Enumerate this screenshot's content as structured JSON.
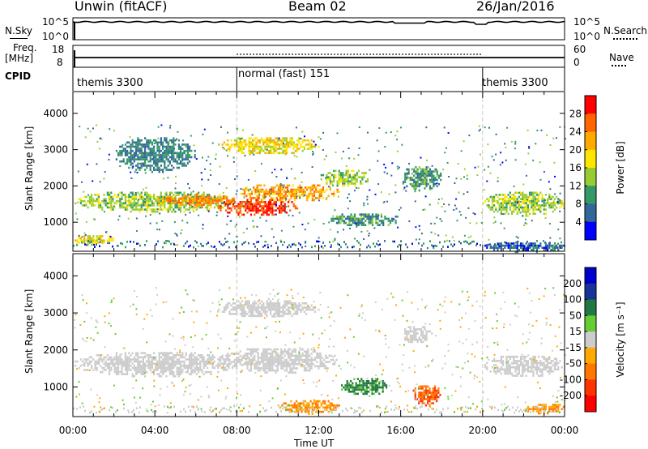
{
  "header": {
    "station": "Unwin (fitACF)",
    "beam": "Beam 02",
    "date": "26/Jan/2016"
  },
  "top_panels": {
    "nsky_label": "N.Sky",
    "nsky_ticks": [
      "10^5",
      "10^0"
    ],
    "nsearch_label": "N.Search",
    "nsearch_ticks": [
      "10^5",
      "10^0"
    ],
    "freq_label_line1": "Freq.",
    "freq_label_line2": "[MHz]",
    "freq_ticks": [
      "18",
      "8"
    ],
    "nave_label": "Nave",
    "nave_ticks": [
      "60",
      "0"
    ],
    "cpid_label": "CPID",
    "cpid_segments": [
      {
        "label": "themis 3300",
        "start": 0.0,
        "end": 8.0
      },
      {
        "label": "normal (fast) 151",
        "start": 8.0,
        "end": 20.0
      },
      {
        "label": "themis 3300",
        "start": 20.0,
        "end": 24.0
      }
    ]
  },
  "power_colorbar": {
    "label": "Power [dB]",
    "ticks": [
      "28",
      "24",
      "20",
      "16",
      "12",
      "8",
      "4"
    ],
    "colors": [
      "#ff0000",
      "#ff6600",
      "#ffaa00",
      "#ffe600",
      "#99cc33",
      "#339966",
      "#336699",
      "#0000ff"
    ]
  },
  "velocity_colorbar": {
    "label": "Velocity [m s⁻¹]",
    "ticks": [
      "200",
      "100",
      "50",
      "15",
      "-15",
      "-50",
      "-100",
      "-200"
    ],
    "colors": [
      "#0000cc",
      "#1a3399",
      "#227744",
      "#66cc33",
      "#cccccc",
      "#ffaa00",
      "#ff7700",
      "#ff3300",
      "#ff0000"
    ]
  },
  "x_axis": {
    "label": "Time UT",
    "ticks": [
      "00:00",
      "04:00",
      "08:00",
      "12:00",
      "16:00",
      "20:00",
      "00:00"
    ]
  },
  "chart_data": [
    {
      "type": "heatmap",
      "title": "",
      "quantity": "Power [dB]",
      "xlabel": "Time UT",
      "ylabel": "Slant Range [km]",
      "xlim": [
        0,
        24
      ],
      "ylim": [
        200,
        4600
      ],
      "y_ticks": [
        1000,
        2000,
        3000,
        4000
      ],
      "regions": [
        {
          "t0": 0.0,
          "t1": 8.0,
          "r0": 1300,
          "r1": 1900,
          "db": 14
        },
        {
          "t0": 0.0,
          "t1": 2.0,
          "r0": 400,
          "r1": 700,
          "db": 18
        },
        {
          "t0": 4.0,
          "t1": 8.0,
          "r0": 1450,
          "r1": 1800,
          "db": 24
        },
        {
          "t0": 7.0,
          "t1": 11.0,
          "r0": 1200,
          "r1": 1700,
          "db": 28
        },
        {
          "t0": 8.0,
          "t1": 13.0,
          "r0": 1600,
          "r1": 2100,
          "db": 22
        },
        {
          "t0": 7.0,
          "t1": 12.0,
          "r0": 2900,
          "r1": 3400,
          "db": 18
        },
        {
          "t0": 12.0,
          "t1": 14.5,
          "r0": 2000,
          "r1": 2500,
          "db": 14
        },
        {
          "t0": 12.5,
          "t1": 16.0,
          "r0": 900,
          "r1": 1300,
          "db": 10
        },
        {
          "t0": 16.0,
          "t1": 18.0,
          "r0": 1900,
          "r1": 2600,
          "db": 10
        },
        {
          "t0": 20.0,
          "t1": 24.0,
          "r0": 1200,
          "r1": 1900,
          "db": 14
        },
        {
          "t0": 20.0,
          "t1": 24.0,
          "r0": 200,
          "r1": 500,
          "db": 6
        },
        {
          "t0": 2.0,
          "t1": 6.0,
          "r0": 2400,
          "r1": 3400,
          "db": 8
        }
      ]
    },
    {
      "type": "heatmap",
      "title": "",
      "quantity": "Velocity [m s⁻¹]",
      "xlabel": "Time UT",
      "ylabel": "Slant Range [km]",
      "xlim": [
        0,
        24
      ],
      "ylim": [
        200,
        4600
      ],
      "y_ticks": [
        1000,
        2000,
        3000,
        4000
      ],
      "regions": [
        {
          "t0": 0.0,
          "t1": 8.0,
          "r0": 1300,
          "r1": 2000,
          "vel": 0
        },
        {
          "t0": 7.0,
          "t1": 13.0,
          "r0": 1400,
          "r1": 2100,
          "vel": 0
        },
        {
          "t0": 13.0,
          "t1": 15.5,
          "r0": 800,
          "r1": 1300,
          "vel": 60
        },
        {
          "t0": 10.0,
          "t1": 13.0,
          "r0": 300,
          "r1": 700,
          "vel": -50
        },
        {
          "t0": 16.5,
          "t1": 18.0,
          "r0": 500,
          "r1": 1100,
          "vel": -100
        },
        {
          "t0": 16.0,
          "t1": 17.5,
          "r0": 2200,
          "r1": 2700,
          "vel": 0
        },
        {
          "t0": 20.0,
          "t1": 24.0,
          "r0": 1300,
          "r1": 1900,
          "vel": 0
        },
        {
          "t0": 22.0,
          "t1": 24.0,
          "r0": 300,
          "r1": 600,
          "vel": -50
        },
        {
          "t0": 7.0,
          "t1": 12.0,
          "r0": 2900,
          "r1": 3400,
          "vel": 0
        }
      ]
    }
  ]
}
